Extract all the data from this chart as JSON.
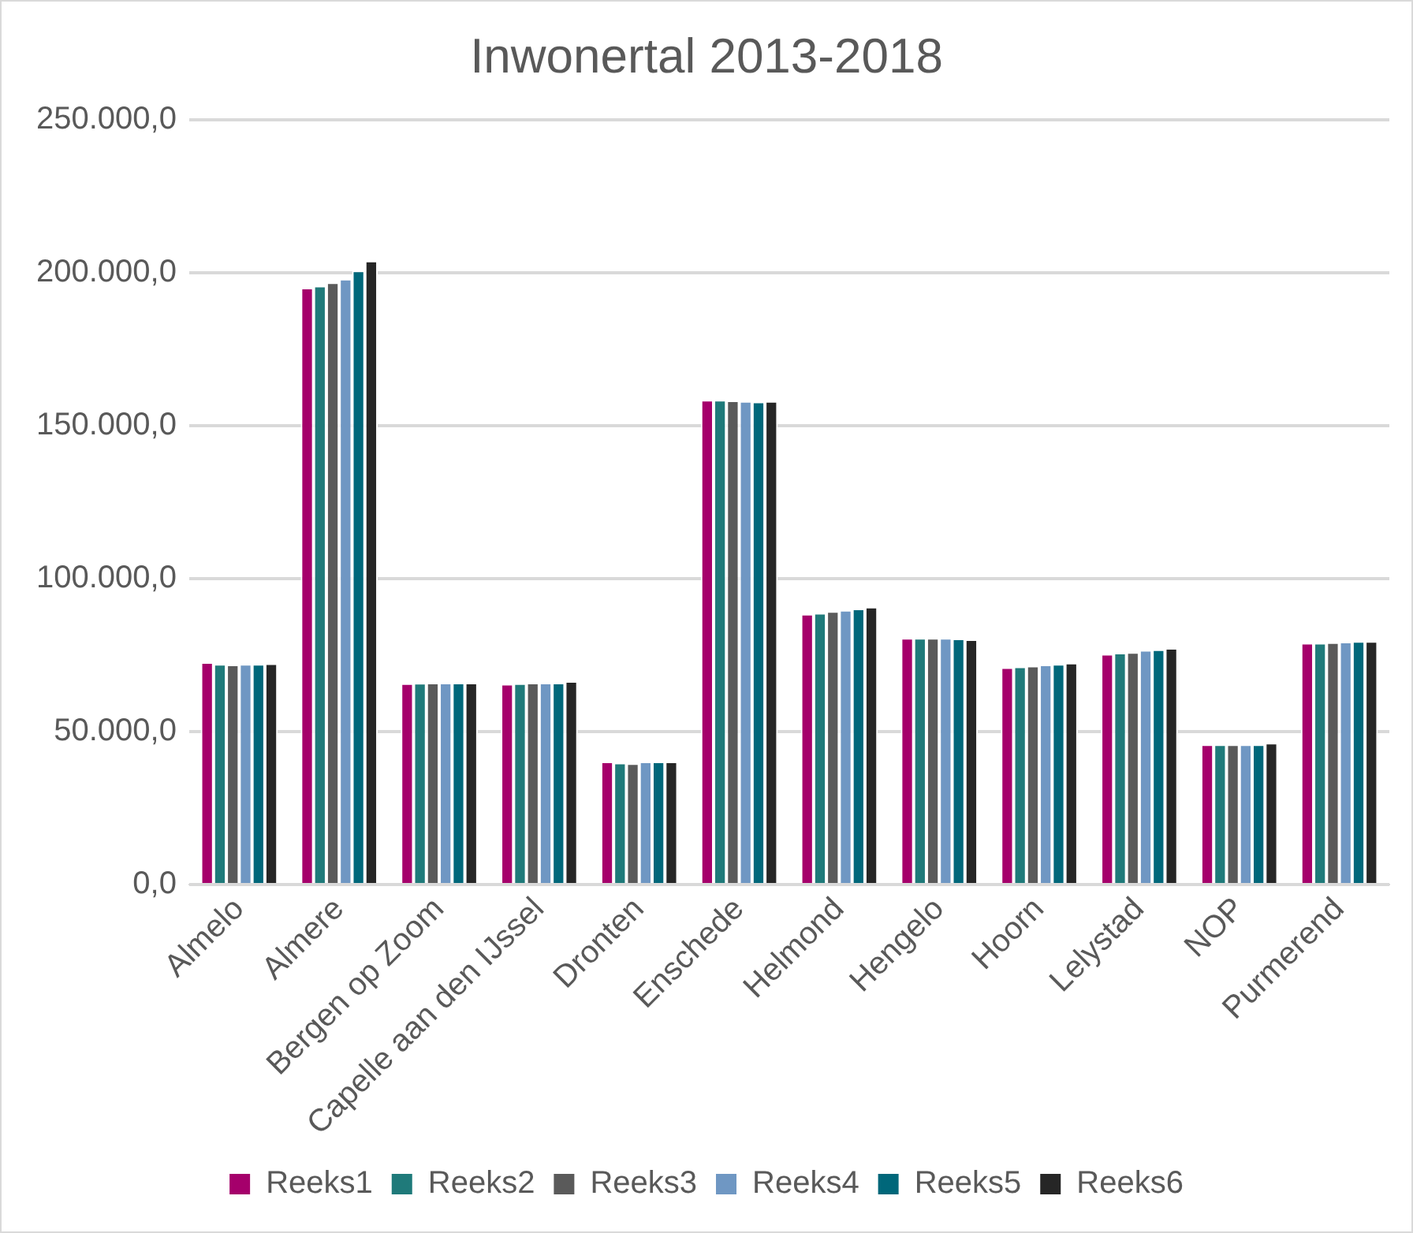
{
  "chart_data": {
    "type": "bar",
    "title": "Inwonertal 2013-2018",
    "categories": [
      "Almelo",
      "Almere",
      "Bergen op Zoom",
      "Capelle aan den IJssel",
      "Dronten",
      "Enschede",
      "Helmond",
      "Hengelo",
      "Hoorn",
      "Lelystad",
      "NOP",
      "Purmerend"
    ],
    "series": [
      {
        "name": "Reeks1",
        "color": "#a5006b",
        "values": [
          72700,
          195200,
          65800,
          65600,
          40200,
          158500,
          88500,
          80600,
          71000,
          75400,
          45800,
          79000
        ]
      },
      {
        "name": "Reeks2",
        "color": "#1f7a7a",
        "values": [
          72100,
          195800,
          65900,
          65800,
          39800,
          158500,
          88800,
          80600,
          71300,
          75800,
          45800,
          79000
        ]
      },
      {
        "name": "Reeks3",
        "color": "#5a5a5a",
        "values": [
          71900,
          196900,
          66000,
          66000,
          39600,
          158300,
          89400,
          80600,
          71500,
          76000,
          45800,
          79200
        ]
      },
      {
        "name": "Reeks4",
        "color": "#6f97c3",
        "values": [
          72100,
          198100,
          66000,
          66000,
          40200,
          158100,
          89800,
          80600,
          71900,
          76700,
          45800,
          79400
        ]
      },
      {
        "name": "Reeks5",
        "color": "#00677a",
        "values": [
          72100,
          200800,
          66000,
          66000,
          40200,
          157900,
          90200,
          80400,
          72100,
          76900,
          45800,
          79600
        ]
      },
      {
        "name": "Reeks6",
        "color": "#262626",
        "values": [
          72300,
          204000,
          66000,
          66500,
          40200,
          158100,
          90800,
          80200,
          72500,
          77300,
          46300,
          79600
        ]
      }
    ],
    "ylim": [
      0,
      250000
    ],
    "yticks": [
      {
        "value": 0,
        "label": "0,0"
      },
      {
        "value": 50000,
        "label": "50.000,0"
      },
      {
        "value": 100000,
        "label": "100.000,0"
      },
      {
        "value": 150000,
        "label": "150.000,0"
      },
      {
        "value": 200000,
        "label": "200.000,0"
      },
      {
        "value": 250000,
        "label": "250.000,0"
      }
    ],
    "grid": "y",
    "legend": "bottom"
  }
}
